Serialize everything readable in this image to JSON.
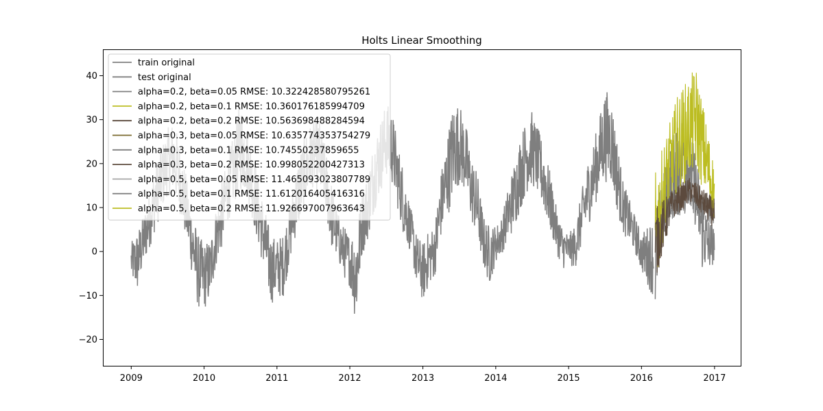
{
  "chart_data": {
    "type": "line",
    "title": "Holts Linear Smoothing",
    "xlabel": "",
    "ylabel": "",
    "xlim": [
      "2008-08-12",
      "2017-05-12"
    ],
    "ylim": [
      -26,
      46
    ],
    "x_ticks": [
      {
        "date": "2009-01-01",
        "label": "2009"
      },
      {
        "date": "2010-01-01",
        "label": "2010"
      },
      {
        "date": "2011-01-01",
        "label": "2011"
      },
      {
        "date": "2012-01-01",
        "label": "2012"
      },
      {
        "date": "2013-01-01",
        "label": "2013"
      },
      {
        "date": "2014-01-01",
        "label": "2014"
      },
      {
        "date": "2015-01-01",
        "label": "2015"
      },
      {
        "date": "2016-01-01",
        "label": "2016"
      },
      {
        "date": "2017-01-01",
        "label": "2017"
      }
    ],
    "y_ticks": [
      -20,
      -10,
      0,
      10,
      20,
      30,
      40
    ],
    "y_tick_labels": [
      "−20",
      "−10",
      "0",
      "10",
      "20",
      "30",
      "40"
    ],
    "grid": false,
    "legend_position": "upper-left",
    "series": [
      {
        "name": "train original",
        "color": "#7f7f7f",
        "style": "noisy-band",
        "points": [
          [
            "2009-01-01",
            -8,
            2
          ],
          [
            "2009-02-01",
            -12,
            5
          ],
          [
            "2009-03-01",
            -6,
            8
          ],
          [
            "2009-04-01",
            -2,
            14
          ],
          [
            "2009-05-01",
            2,
            20
          ],
          [
            "2009-06-01",
            6,
            24
          ],
          [
            "2009-07-01",
            10,
            28
          ],
          [
            "2009-08-01",
            10,
            30
          ],
          [
            "2009-09-01",
            6,
            25
          ],
          [
            "2009-10-01",
            0,
            18
          ],
          [
            "2009-11-01",
            -8,
            10
          ],
          [
            "2009-12-01",
            -16,
            4
          ],
          [
            "2010-01-01",
            -16,
            2
          ],
          [
            "2010-02-01",
            -14,
            3
          ],
          [
            "2010-03-01",
            -6,
            10
          ],
          [
            "2010-04-01",
            -2,
            16
          ],
          [
            "2010-05-01",
            4,
            22
          ],
          [
            "2010-06-01",
            8,
            27
          ],
          [
            "2010-07-01",
            10,
            35
          ],
          [
            "2010-08-01",
            10,
            30
          ],
          [
            "2010-09-01",
            4,
            24
          ],
          [
            "2010-10-01",
            -2,
            17
          ],
          [
            "2010-11-01",
            -8,
            10
          ],
          [
            "2010-12-01",
            -15,
            4
          ],
          [
            "2011-01-01",
            -13,
            3
          ],
          [
            "2011-02-01",
            -13,
            4
          ],
          [
            "2011-03-01",
            -6,
            10
          ],
          [
            "2011-04-01",
            0,
            18
          ],
          [
            "2011-05-01",
            4,
            24
          ],
          [
            "2011-06-01",
            8,
            28
          ],
          [
            "2011-07-01",
            12,
            30
          ],
          [
            "2011-08-01",
            10,
            30
          ],
          [
            "2011-09-01",
            6,
            24
          ],
          [
            "2011-10-01",
            -2,
            16
          ],
          [
            "2011-11-01",
            -4,
            9
          ],
          [
            "2011-12-01",
            -8,
            6
          ],
          [
            "2012-01-01",
            -10,
            4
          ],
          [
            "2012-02-01",
            -21,
            6
          ],
          [
            "2012-03-01",
            -4,
            14
          ],
          [
            "2012-04-01",
            0,
            18
          ],
          [
            "2012-05-01",
            6,
            26
          ],
          [
            "2012-06-01",
            10,
            30
          ],
          [
            "2012-07-01",
            14,
            34
          ],
          [
            "2012-08-01",
            12,
            32
          ],
          [
            "2012-09-01",
            6,
            24
          ],
          [
            "2012-10-01",
            0,
            18
          ],
          [
            "2012-11-01",
            -2,
            10
          ],
          [
            "2012-12-01",
            -10,
            4
          ],
          [
            "2013-01-01",
            -14,
            2
          ],
          [
            "2013-02-01",
            -10,
            5
          ],
          [
            "2013-03-01",
            -8,
            6
          ],
          [
            "2013-04-01",
            0,
            18
          ],
          [
            "2013-05-01",
            4,
            26
          ],
          [
            "2013-06-01",
            8,
            34
          ],
          [
            "2013-07-01",
            12,
            34
          ],
          [
            "2013-08-01",
            10,
            30
          ],
          [
            "2013-09-01",
            4,
            22
          ],
          [
            "2013-10-01",
            0,
            18
          ],
          [
            "2013-11-01",
            -6,
            8
          ],
          [
            "2013-12-01",
            -10,
            6
          ],
          [
            "2014-01-01",
            -4,
            6
          ],
          [
            "2014-02-01",
            -2,
            8
          ],
          [
            "2014-03-01",
            0,
            14
          ],
          [
            "2014-04-01",
            2,
            20
          ],
          [
            "2014-05-01",
            6,
            26
          ],
          [
            "2014-06-01",
            10,
            30
          ],
          [
            "2014-07-01",
            12,
            32
          ],
          [
            "2014-08-01",
            10,
            28
          ],
          [
            "2014-09-01",
            6,
            24
          ],
          [
            "2014-10-01",
            2,
            18
          ],
          [
            "2014-11-01",
            -2,
            10
          ],
          [
            "2014-12-01",
            -6,
            6
          ],
          [
            "2015-01-01",
            -4,
            4
          ],
          [
            "2015-02-01",
            -6,
            6
          ],
          [
            "2015-03-01",
            -2,
            12
          ],
          [
            "2015-04-01",
            2,
            20
          ],
          [
            "2015-05-01",
            6,
            24
          ],
          [
            "2015-06-01",
            10,
            30
          ],
          [
            "2015-07-01",
            12,
            37
          ],
          [
            "2015-08-01",
            12,
            36
          ],
          [
            "2015-09-01",
            6,
            26
          ],
          [
            "2015-10-01",
            2,
            16
          ],
          [
            "2015-11-01",
            0,
            12
          ],
          [
            "2015-12-01",
            -2,
            8
          ],
          [
            "2016-01-01",
            -6,
            4
          ],
          [
            "2016-02-01",
            -10,
            6
          ],
          [
            "2016-03-01",
            -14,
            8
          ]
        ]
      },
      {
        "name": "test original",
        "color": "#7f7f7f",
        "style": "noisy-band",
        "points": [
          [
            "2016-03-10",
            -19,
            10
          ],
          [
            "2016-04-01",
            -6,
            14
          ],
          [
            "2016-05-01",
            0,
            20
          ],
          [
            "2016-06-01",
            6,
            26
          ],
          [
            "2016-07-01",
            8,
            30
          ],
          [
            "2016-08-01",
            10,
            32
          ],
          [
            "2016-09-01",
            6,
            28
          ],
          [
            "2016-10-01",
            2,
            22
          ],
          [
            "2016-11-01",
            -8,
            14
          ],
          [
            "2016-12-01",
            -7,
            8
          ],
          [
            "2016-12-31",
            -4,
            6
          ]
        ]
      },
      {
        "name": "alpha=0.2, beta=0.05 RMSE: 10.322428580795261",
        "color": "#7f7f7f",
        "style": "forecast",
        "points": [
          [
            "2016-03-10",
            2,
            8
          ],
          [
            "2016-06-01",
            6,
            14
          ],
          [
            "2016-09-01",
            8,
            16
          ],
          [
            "2016-12-31",
            4,
            12
          ]
        ]
      },
      {
        "name": "alpha=0.2, beta=0.1 RMSE: 10.360176185994709",
        "color": "#bcbd22",
        "style": "forecast",
        "points": [
          [
            "2016-03-10",
            -16,
            18
          ],
          [
            "2016-05-01",
            4,
            26
          ],
          [
            "2016-07-01",
            10,
            36
          ],
          [
            "2016-10-01",
            14,
            42
          ],
          [
            "2016-12-31",
            4,
            20
          ]
        ]
      },
      {
        "name": "alpha=0.2, beta=0.2 RMSE: 10.563698488284594",
        "color": "#5c4a3d",
        "style": "forecast",
        "points": [
          [
            "2016-03-10",
            -10,
            10
          ],
          [
            "2016-06-01",
            6,
            14
          ],
          [
            "2016-09-01",
            10,
            17
          ],
          [
            "2016-12-31",
            4,
            12
          ]
        ]
      },
      {
        "name": "alpha=0.3, beta=0.05 RMSE: 10.635774353754279",
        "color": "#7a6a2e",
        "style": "hidden",
        "points": []
      },
      {
        "name": "alpha=0.3, beta=0.1 RMSE: 10.74550237859655",
        "color": "#7f7f7f",
        "style": "hidden",
        "points": []
      },
      {
        "name": "alpha=0.3, beta=0.2 RMSE: 10.998052200427313",
        "color": "#5c4a3d",
        "style": "hidden",
        "points": []
      },
      {
        "name": "alpha=0.5, beta=0.05 RMSE: 11.465093023807789",
        "color": "#a6a6a6",
        "style": "hidden",
        "points": []
      },
      {
        "name": "alpha=0.5, beta=0.1 RMSE: 11.612016405416316",
        "color": "#7f7f7f",
        "style": "hidden",
        "points": []
      },
      {
        "name": "alpha=0.5, beta=0.2 RMSE: 11.926697007963643",
        "color": "#bcbd22",
        "style": "hidden",
        "points": []
      }
    ]
  }
}
